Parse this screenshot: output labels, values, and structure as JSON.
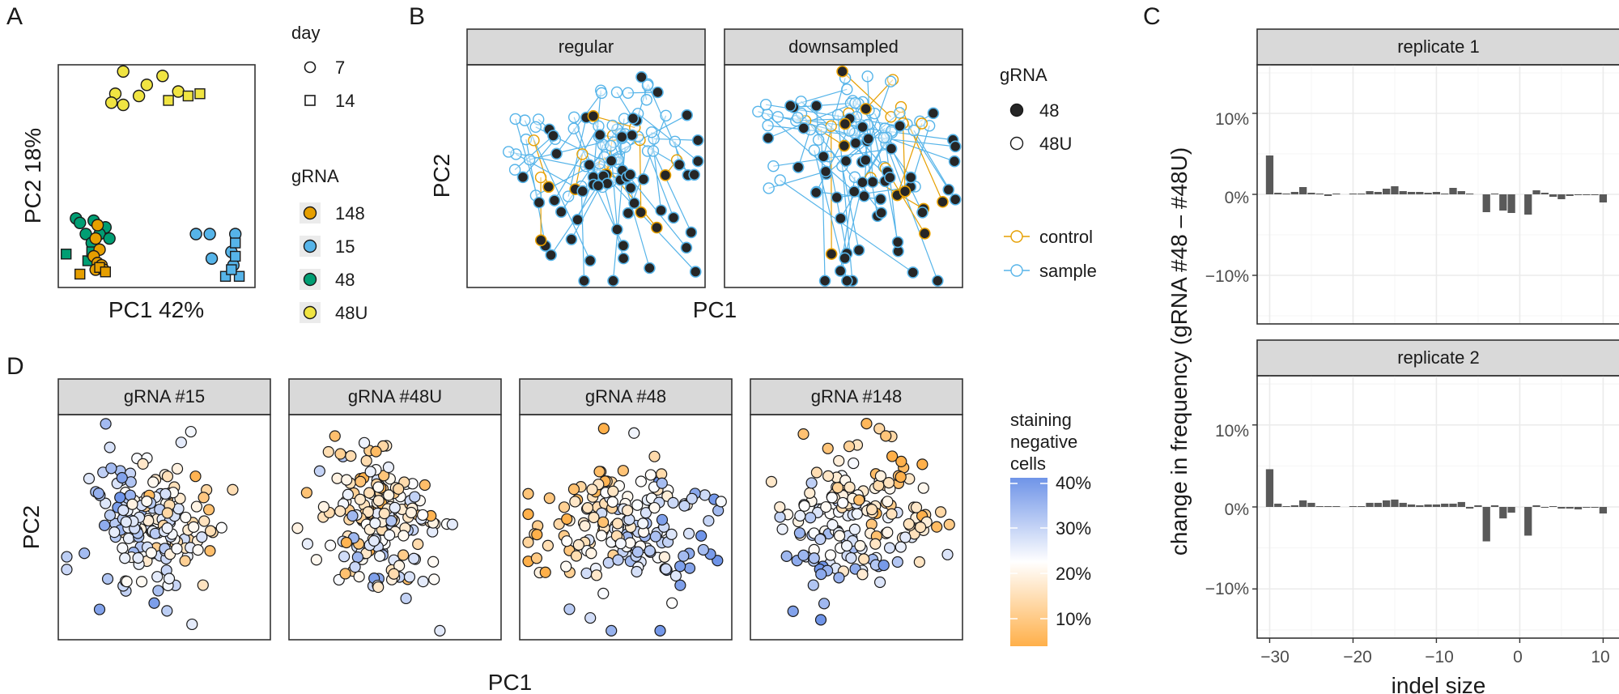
{
  "panel_labels": {
    "a": "A",
    "b": "B",
    "c": "C",
    "d": "D"
  },
  "colors": {
    "gRNA_148": "#E69F00",
    "gRNA_15": "#56B4E9",
    "gRNA_48": "#009E73",
    "gRNA_48U": "#F0E442",
    "control": "#E69F00",
    "sample": "#56B4E9",
    "bar": "#595959",
    "grad_high": "#6F94E8",
    "grad_mid": "#ffffff",
    "grad_low": "#FFB04A"
  },
  "panelA": {
    "xlabel": "PC1 42%",
    "ylabel": "PC2 18%",
    "legend_day_title": "day",
    "legend_day_items": [
      "7",
      "14"
    ],
    "legend_grna_title": "gRNA",
    "legend_grna_items": [
      "148",
      "15",
      "48",
      "48U"
    ]
  },
  "panelB": {
    "facets": [
      "regular",
      "downsampled"
    ],
    "xlabel": "PC1",
    "ylabel": "PC2",
    "legend_grna_title": "gRNA",
    "legend_grna_items": [
      "48",
      "48U"
    ],
    "legend_group_items": [
      "control",
      "sample"
    ]
  },
  "panelC": {
    "facets": [
      "replicate 1",
      "replicate 2"
    ],
    "xlabel": "indel size",
    "ylabel": "change in frequency (gRNA #48 – #48U)",
    "y_ticks": [
      "10%",
      "0%",
      "−10%"
    ],
    "x_ticks": [
      "−30",
      "−20",
      "−10",
      "0",
      "10"
    ]
  },
  "panelD": {
    "facets": [
      "gRNA #15",
      "gRNA #48U",
      "gRNA #48",
      "gRNA #148"
    ],
    "xlabel": "PC1",
    "ylabel": "PC2",
    "legend_title": [
      "staining",
      "negative",
      "cells"
    ],
    "legend_ticks": [
      "40%",
      "30%",
      "20%",
      "10%"
    ]
  },
  "chart_data": [
    {
      "type": "scatter",
      "id": "A",
      "xlabel": "PC1 42%",
      "ylabel": "PC2 18%",
      "xlim": [
        0,
        1
      ],
      "ylim": [
        0,
        1
      ],
      "groups": [
        {
          "gRNA": "48U",
          "day": "7",
          "points": [
            [
              0.33,
              0.97
            ],
            [
              0.45,
              0.91
            ],
            [
              0.53,
              0.95
            ],
            [
              0.29,
              0.87
            ],
            [
              0.41,
              0.86
            ],
            [
              0.27,
              0.83
            ],
            [
              0.33,
              0.82
            ],
            [
              0.61,
              0.88
            ]
          ]
        },
        {
          "gRNA": "48U",
          "day": "14",
          "points": [
            [
              0.56,
              0.84
            ],
            [
              0.66,
              0.86
            ],
            [
              0.72,
              0.87
            ]
          ]
        },
        {
          "gRNA": "48",
          "day": "7",
          "points": [
            [
              0.09,
              0.31
            ],
            [
              0.11,
              0.29
            ],
            [
              0.18,
              0.3
            ],
            [
              0.24,
              0.27
            ],
            [
              0.14,
              0.24
            ],
            [
              0.21,
              0.24
            ],
            [
              0.17,
              0.2
            ],
            [
              0.26,
              0.22
            ]
          ]
        },
        {
          "gRNA": "48",
          "day": "14",
          "points": [
            [
              0.04,
              0.15
            ],
            [
              0.15,
              0.12
            ],
            [
              0.17,
              0.16
            ]
          ]
        },
        {
          "gRNA": "148",
          "day": "7",
          "points": [
            [
              0.2,
              0.28
            ],
            [
              0.19,
              0.22
            ],
            [
              0.21,
              0.17
            ],
            [
              0.18,
              0.14
            ],
            [
              0.2,
              0.11
            ],
            [
              0.22,
              0.1
            ],
            [
              0.19,
              0.08
            ],
            [
              0.23,
              0.08
            ]
          ]
        },
        {
          "gRNA": "148",
          "day": "14",
          "points": [
            [
              0.11,
              0.06
            ],
            [
              0.21,
              0.09
            ],
            [
              0.24,
              0.07
            ]
          ]
        },
        {
          "gRNA": "15",
          "day": "7",
          "points": [
            [
              0.7,
              0.24
            ],
            [
              0.77,
              0.24
            ],
            [
              0.9,
              0.24
            ],
            [
              0.78,
              0.13
            ],
            [
              0.88,
              0.16
            ],
            [
              0.89,
              0.1
            ]
          ]
        },
        {
          "gRNA": "15",
          "day": "14",
          "points": [
            [
              0.9,
              0.2
            ],
            [
              0.9,
              0.14
            ],
            [
              0.85,
              0.05
            ],
            [
              0.92,
              0.05
            ],
            [
              0.88,
              0.08
            ]
          ]
        }
      ]
    },
    {
      "type": "scatter",
      "id": "B",
      "facets": [
        "regular",
        "downsampled"
      ],
      "xlabel": "PC1",
      "ylabel": "PC2",
      "xlim": [
        0,
        1
      ],
      "ylim": [
        0,
        1
      ],
      "groups": [
        "control",
        "sample"
      ],
      "gRNA_levels": [
        "48",
        "48U"
      ],
      "note": "each gRNA 48 sample is connected to a matched 48U sample (drawn as segments)"
    },
    {
      "type": "bar",
      "id": "C",
      "xlabel": "indel size",
      "ylabel": "change in frequency (gRNA #48 – #48U)",
      "xlim": [
        -31.5,
        12
      ],
      "ylim": [
        -16,
        16
      ],
      "x_ticks": [
        -30,
        -20,
        -10,
        0,
        10
      ],
      "y_ticks": [
        10,
        0,
        -10
      ],
      "x": [
        -30,
        -29,
        -28,
        -27,
        -26,
        -25,
        -24,
        -23,
        -22,
        -21,
        -20,
        -19,
        -18,
        -17,
        -16,
        -15,
        -14,
        -13,
        -12,
        -11,
        -10,
        -9,
        -8,
        -7,
        -6,
        -5,
        -4,
        -3,
        -2,
        -1,
        0,
        1,
        2,
        3,
        4,
        5,
        6,
        7,
        8,
        9,
        10
      ],
      "series": [
        {
          "name": "replicate 1",
          "values": [
            4.8,
            0.2,
            0.1,
            0.3,
            0.9,
            0.2,
            0.1,
            -0.2,
            0.1,
            0.0,
            0.1,
            0.1,
            0.4,
            0.3,
            0.7,
            1.0,
            0.4,
            0.3,
            0.3,
            0.2,
            0.3,
            0.1,
            0.8,
            0.4,
            0.1,
            0.0,
            -2.2,
            0.1,
            -2.0,
            -2.3,
            0.0,
            -2.5,
            0.5,
            0.2,
            -0.3,
            -0.6,
            -0.2,
            -0.1,
            -0.1,
            -0.1,
            -1.0
          ]
        },
        {
          "name": "replicate 2",
          "values": [
            4.6,
            0.4,
            0.1,
            0.2,
            0.8,
            0.5,
            0.1,
            0.1,
            0.1,
            0.0,
            0.1,
            0.1,
            0.5,
            0.5,
            0.8,
            0.9,
            0.5,
            0.3,
            0.2,
            0.3,
            0.3,
            0.4,
            0.4,
            0.6,
            -0.2,
            0.2,
            -4.2,
            0.2,
            -1.4,
            -0.7,
            0.0,
            -3.5,
            0.2,
            -0.1,
            0.1,
            -0.2,
            -0.2,
            -0.3,
            -0.1,
            -0.1,
            -0.8
          ]
        }
      ]
    },
    {
      "type": "scatter",
      "id": "D",
      "facets": [
        "gRNA #15",
        "gRNA #48U",
        "gRNA #48",
        "gRNA #148"
      ],
      "xlabel": "PC1",
      "ylabel": "PC2",
      "xlim": [
        0,
        1
      ],
      "ylim": [
        0,
        1
      ],
      "color_variable": "staining negative cells",
      "color_range_percent": [
        5,
        42
      ],
      "color_ticks": [
        "40%",
        "30%",
        "20%",
        "10%"
      ]
    }
  ]
}
